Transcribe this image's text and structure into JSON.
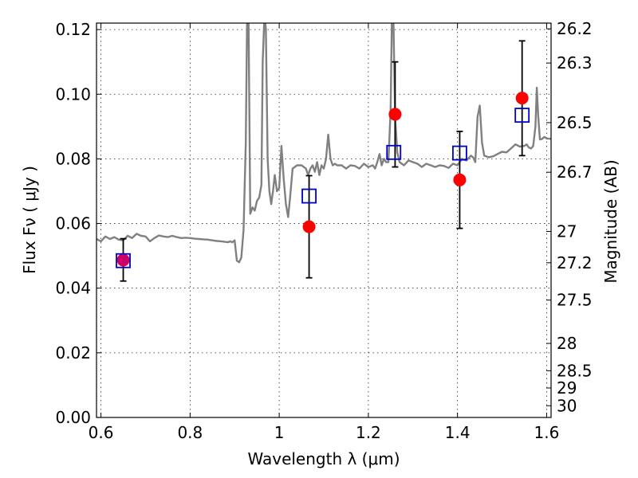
{
  "chart_data": {
    "type": "scatter",
    "xlabel": "Wavelength  λ (μm)",
    "ylabel": "Flux  Fν  ( μJy )",
    "ylabel_right": "Magnitude (AB)",
    "xlim": [
      0.59,
      1.61
    ],
    "ylim": [
      0.0,
      0.122
    ],
    "grid": true,
    "x_ticks": [
      {
        "value": 0.6,
        "label": "0.6"
      },
      {
        "value": 0.8,
        "label": "0.8"
      },
      {
        "value": 1.0,
        "label": "1"
      },
      {
        "value": 1.2,
        "label": "1.2"
      },
      {
        "value": 1.4,
        "label": "1.4"
      },
      {
        "value": 1.6,
        "label": "1.6"
      }
    ],
    "y_ticks": [
      {
        "value": 0.0,
        "label": "0.00"
      },
      {
        "value": 0.02,
        "label": "0.02"
      },
      {
        "value": 0.04,
        "label": "0.04"
      },
      {
        "value": 0.06,
        "label": "0.06"
      },
      {
        "value": 0.08,
        "label": "0.08"
      },
      {
        "value": 0.1,
        "label": "0.10"
      },
      {
        "value": 0.12,
        "label": "0.12"
      }
    ],
    "mag_ticks": [
      {
        "value": 26.2,
        "label": "26.2"
      },
      {
        "value": 26.3,
        "label": "26.3"
      },
      {
        "value": 26.5,
        "label": "26.5"
      },
      {
        "value": 26.7,
        "label": "26.7"
      },
      {
        "value": 27.0,
        "label": "27"
      },
      {
        "value": 27.2,
        "label": "27.2"
      },
      {
        "value": 27.5,
        "label": "27.5"
      },
      {
        "value": 28.0,
        "label": "28"
      },
      {
        "value": 28.5,
        "label": "28.5"
      },
      {
        "value": 29.0,
        "label": "29"
      },
      {
        "value": 30.0,
        "label": "30"
      }
    ],
    "series": [
      {
        "kind": "spectrum",
        "color": "#808080",
        "points": [
          [
            0.59,
            0.0552
          ],
          [
            0.6,
            0.0545
          ],
          [
            0.61,
            0.056
          ],
          [
            0.62,
            0.0552
          ],
          [
            0.63,
            0.0558
          ],
          [
            0.64,
            0.055
          ],
          [
            0.65,
            0.0548
          ],
          [
            0.66,
            0.0562
          ],
          [
            0.67,
            0.0555
          ],
          [
            0.68,
            0.0568
          ],
          [
            0.69,
            0.0562
          ],
          [
            0.7,
            0.056
          ],
          [
            0.71,
            0.0545
          ],
          [
            0.72,
            0.0555
          ],
          [
            0.73,
            0.0563
          ],
          [
            0.74,
            0.056
          ],
          [
            0.75,
            0.0558
          ],
          [
            0.76,
            0.0562
          ],
          [
            0.77,
            0.0558
          ],
          [
            0.78,
            0.0555
          ],
          [
            0.79,
            0.0556
          ],
          [
            0.8,
            0.0555
          ],
          [
            0.81,
            0.0553
          ],
          [
            0.82,
            0.0552
          ],
          [
            0.83,
            0.0551
          ],
          [
            0.84,
            0.055
          ],
          [
            0.85,
            0.0548
          ],
          [
            0.86,
            0.0546
          ],
          [
            0.87,
            0.0545
          ],
          [
            0.88,
            0.0543
          ],
          [
            0.885,
            0.0542
          ],
          [
            0.89,
            0.0545
          ],
          [
            0.895,
            0.0542
          ],
          [
            0.9,
            0.0548
          ],
          [
            0.905,
            0.0485
          ],
          [
            0.91,
            0.048
          ],
          [
            0.915,
            0.0495
          ],
          [
            0.92,
            0.058
          ],
          [
            0.925,
            0.085
          ],
          [
            0.928,
            0.125
          ],
          [
            0.931,
            0.125
          ],
          [
            0.935,
            0.063
          ],
          [
            0.94,
            0.065
          ],
          [
            0.945,
            0.064
          ],
          [
            0.95,
            0.067
          ],
          [
            0.955,
            0.068
          ],
          [
            0.96,
            0.072
          ],
          [
            0.963,
            0.11
          ],
          [
            0.967,
            0.125
          ],
          [
            0.97,
            0.12
          ],
          [
            0.974,
            0.08
          ],
          [
            0.978,
            0.07
          ],
          [
            0.982,
            0.066
          ],
          [
            0.986,
            0.07
          ],
          [
            0.99,
            0.075
          ],
          [
            0.995,
            0.07
          ],
          [
            1.0,
            0.071
          ],
          [
            1.005,
            0.084
          ],
          [
            1.01,
            0.074
          ],
          [
            1.015,
            0.066
          ],
          [
            1.02,
            0.062
          ],
          [
            1.025,
            0.069
          ],
          [
            1.03,
            0.077
          ],
          [
            1.04,
            0.078
          ],
          [
            1.05,
            0.078
          ],
          [
            1.06,
            0.077
          ],
          [
            1.065,
            0.075
          ],
          [
            1.07,
            0.077
          ],
          [
            1.075,
            0.078
          ],
          [
            1.08,
            0.076
          ],
          [
            1.085,
            0.079
          ],
          [
            1.09,
            0.075
          ],
          [
            1.095,
            0.078
          ],
          [
            1.1,
            0.077
          ],
          [
            1.105,
            0.08
          ],
          [
            1.11,
            0.0875
          ],
          [
            1.115,
            0.08
          ],
          [
            1.12,
            0.078
          ],
          [
            1.125,
            0.0785
          ],
          [
            1.13,
            0.078
          ],
          [
            1.14,
            0.078
          ],
          [
            1.15,
            0.077
          ],
          [
            1.16,
            0.078
          ],
          [
            1.17,
            0.0778
          ],
          [
            1.18,
            0.077
          ],
          [
            1.19,
            0.0785
          ],
          [
            1.2,
            0.0775
          ],
          [
            1.21,
            0.078
          ],
          [
            1.215,
            0.077
          ],
          [
            1.22,
            0.079
          ],
          [
            1.225,
            0.0815
          ],
          [
            1.23,
            0.078
          ],
          [
            1.235,
            0.08
          ],
          [
            1.24,
            0.079
          ],
          [
            1.245,
            0.079
          ],
          [
            1.25,
            0.095
          ],
          [
            1.253,
            0.125
          ],
          [
            1.256,
            0.125
          ],
          [
            1.26,
            0.093
          ],
          [
            1.265,
            0.082
          ],
          [
            1.27,
            0.079
          ],
          [
            1.28,
            0.078
          ],
          [
            1.29,
            0.0795
          ],
          [
            1.3,
            0.079
          ],
          [
            1.31,
            0.0785
          ],
          [
            1.32,
            0.0775
          ],
          [
            1.33,
            0.0785
          ],
          [
            1.34,
            0.078
          ],
          [
            1.35,
            0.0775
          ],
          [
            1.36,
            0.078
          ],
          [
            1.37,
            0.0778
          ],
          [
            1.38,
            0.0772
          ],
          [
            1.39,
            0.0785
          ],
          [
            1.4,
            0.078
          ],
          [
            1.41,
            0.08
          ],
          [
            1.42,
            0.0795
          ],
          [
            1.43,
            0.081
          ],
          [
            1.435,
            0.0805
          ],
          [
            1.44,
            0.079
          ],
          [
            1.445,
            0.093
          ],
          [
            1.45,
            0.0965
          ],
          [
            1.455,
            0.085
          ],
          [
            1.46,
            0.081
          ],
          [
            1.47,
            0.0805
          ],
          [
            1.48,
            0.0808
          ],
          [
            1.49,
            0.0815
          ],
          [
            1.5,
            0.0822
          ],
          [
            1.51,
            0.082
          ],
          [
            1.52,
            0.0832
          ],
          [
            1.53,
            0.0845
          ],
          [
            1.54,
            0.0838
          ],
          [
            1.55,
            0.084
          ],
          [
            1.555,
            0.0845
          ],
          [
            1.56,
            0.0835
          ],
          [
            1.565,
            0.0832
          ],
          [
            1.57,
            0.084
          ],
          [
            1.575,
            0.09
          ],
          [
            1.578,
            0.102
          ],
          [
            1.581,
            0.0935
          ],
          [
            1.585,
            0.086
          ],
          [
            1.59,
            0.0862
          ],
          [
            1.595,
            0.0868
          ],
          [
            1.6,
            0.0863
          ],
          [
            1.61,
            0.0862
          ]
        ]
      },
      {
        "kind": "observed",
        "color": "#ff0000",
        "points": [
          {
            "x": 0.65,
            "y": 0.0487,
            "err_lo": 0.0422,
            "err_hi": 0.0553
          },
          {
            "x": 1.067,
            "y": 0.059,
            "err_lo": 0.0432,
            "err_hi": 0.0748
          },
          {
            "x": 1.26,
            "y": 0.0938,
            "err_lo": 0.0775,
            "err_hi": 0.11
          },
          {
            "x": 1.405,
            "y": 0.0735,
            "err_lo": 0.0585,
            "err_hi": 0.0885
          },
          {
            "x": 1.545,
            "y": 0.0988,
            "err_lo": 0.081,
            "err_hi": 0.1165
          }
        ]
      },
      {
        "kind": "model",
        "color": "#0000cc",
        "points": [
          {
            "x": 0.65,
            "y": 0.0485
          },
          {
            "x": 1.067,
            "y": 0.0685
          },
          {
            "x": 1.257,
            "y": 0.082
          },
          {
            "x": 1.405,
            "y": 0.0818
          },
          {
            "x": 1.545,
            "y": 0.0935
          }
        ]
      }
    ]
  }
}
